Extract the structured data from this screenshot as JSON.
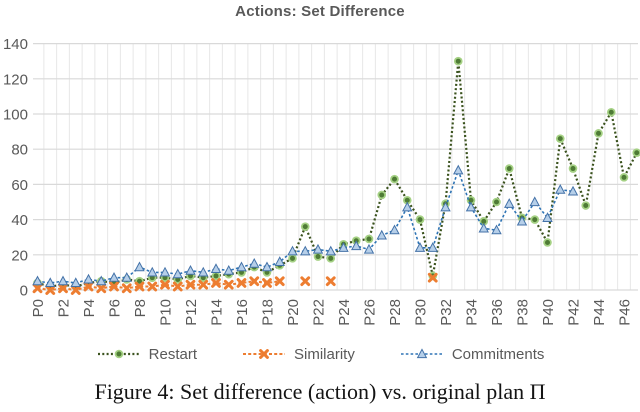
{
  "title": "Actions: Set Difference",
  "caption": "Figure 4: Set difference (action) vs. original plan Π",
  "colors": {
    "grid_h": "#d9d9d9",
    "grid_v": "#e7e7e7",
    "axis_text": "#595959",
    "title_text": "#595959",
    "legend_text": "#595959"
  },
  "chart_data": {
    "type": "line",
    "title": "Actions: Set Difference",
    "xlabel": "",
    "ylabel": "",
    "ylim": [
      0,
      140
    ],
    "ytick_step": 20,
    "x_label_every": 2,
    "grid": true,
    "legend_position": "bottom",
    "categories": [
      "P0",
      "P1",
      "P2",
      "P3",
      "P4",
      "P5",
      "P6",
      "P7",
      "P8",
      "P9",
      "P10",
      "P11",
      "P12",
      "P13",
      "P14",
      "P15",
      "P16",
      "P17",
      "P18",
      "P19",
      "P20",
      "P21",
      "P22",
      "P23",
      "P24",
      "P25",
      "P26",
      "P27",
      "P28",
      "P29",
      "P30",
      "P31",
      "P32",
      "P33",
      "P34",
      "P35",
      "P36",
      "P37",
      "P38",
      "P39",
      "P40",
      "P41",
      "P42",
      "P43",
      "P44",
      "P45",
      "P46",
      "P47"
    ],
    "series": [
      {
        "name": "Restart",
        "marker": "circle",
        "line_color": "#3a521d",
        "line_width": 2.2,
        "dash": "2 2.3",
        "marker_halo": "#a5d184",
        "marker_fill": "#4e7b35",
        "marker_stroke": "#3a521d",
        "values": [
          4,
          2,
          3,
          2,
          4,
          5,
          4,
          6,
          5,
          7,
          7,
          6,
          8,
          7,
          8,
          9,
          10,
          13,
          10,
          14,
          18,
          36,
          19,
          18,
          26,
          28,
          29,
          54,
          63,
          51,
          40,
          8,
          49,
          130,
          51,
          39,
          50,
          69,
          41,
          40,
          27,
          86,
          69,
          48,
          89,
          101,
          64,
          78
        ]
      },
      {
        "name": "Similarity",
        "marker": "x",
        "line_color": "#ed7d31",
        "line_width": 2,
        "dash": "3 2.2",
        "marker_halo": "#f4b183",
        "marker_fill": "#ed7d31",
        "marker_stroke": "#ed7d31",
        "values": [
          1,
          0,
          1,
          0,
          2,
          1,
          2,
          1,
          2,
          2,
          3,
          2,
          3,
          3,
          4,
          3,
          4,
          5,
          4,
          5,
          null,
          5,
          null,
          5,
          null,
          null,
          null,
          null,
          null,
          null,
          null,
          7,
          null,
          null,
          null,
          null,
          null,
          null,
          null,
          null,
          null,
          null,
          null,
          null,
          null,
          null,
          null,
          null
        ]
      },
      {
        "name": "Commitments",
        "marker": "triangle",
        "line_color": "#2e74b5",
        "line_width": 1.6,
        "dash": "2.6 2.2",
        "marker_halo": "#bdd7ee",
        "marker_fill": "#b6cfe9",
        "marker_stroke": "#4472a8",
        "values": [
          5,
          4,
          5,
          4,
          6,
          5,
          7,
          7,
          13,
          10,
          10,
          9,
          11,
          10,
          12,
          11,
          13,
          15,
          13,
          16,
          22,
          22,
          23,
          22,
          24,
          25,
          23,
          31,
          34,
          47,
          24,
          24,
          47,
          68,
          47,
          35,
          34,
          49,
          39,
          50,
          41,
          57,
          56,
          null,
          null,
          null,
          null,
          null
        ]
      }
    ]
  }
}
